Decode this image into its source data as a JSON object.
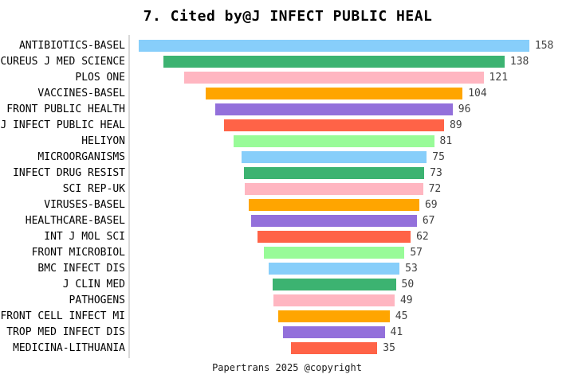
{
  "header": {
    "title": "7. Cited by@J INFECT PUBLIC HEAL"
  },
  "footer": {
    "text": "Papertrans 2025 @copyright"
  },
  "colors": {
    "background": "#ffffff",
    "axis_line": "#d9d9d9",
    "title_text": "#000000",
    "category_text": "#000000",
    "value_text": "#404040"
  },
  "chart_data": {
    "type": "bar",
    "variant": "horizontal-centered-funnel",
    "title": "7. Cited by@J INFECT PUBLIC HEAL",
    "xlabel": "",
    "ylabel": "",
    "grid": false,
    "legend": "none",
    "value_labels": "right-of-bar",
    "categories": [
      "ANTIBIOTICS-BASEL",
      "CUREUS J MED SCIENCE",
      "PLOS ONE",
      "VACCINES-BASEL",
      "FRONT PUBLIC HEALTH",
      "J INFECT PUBLIC HEAL",
      "HELIYON",
      "MICROORGANISMS",
      "INFECT DRUG RESIST",
      "SCI REP-UK",
      "VIRUSES-BASEL",
      "HEALTHCARE-BASEL",
      "INT J MOL SCI",
      "FRONT MICROBIOL",
      "BMC INFECT DIS",
      "J CLIN MED",
      "PATHOGENS",
      "FRONT CELL INFECT MI",
      "TROP MED INFECT DIS",
      "MEDICINA-LITHUANIA"
    ],
    "values": [
      158,
      138,
      121,
      104,
      96,
      89,
      81,
      75,
      73,
      72,
      69,
      67,
      62,
      57,
      53,
      50,
      49,
      45,
      41,
      35
    ],
    "bar_color_cycle": [
      "#87CEFA",
      "#3CB371",
      "#FFB6C1",
      "#FFA500",
      "#9370DB",
      "#FF6347",
      "#98FB98"
    ],
    "value_range": [
      0,
      158
    ]
  }
}
